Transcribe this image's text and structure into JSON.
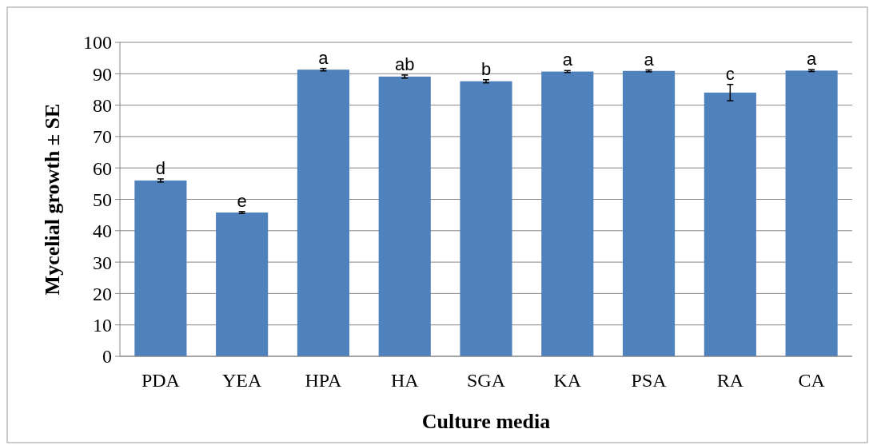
{
  "chart_data": {
    "type": "bar",
    "xlabel": "Culture media",
    "ylabel": "Mycelial growth ± SE",
    "categories": [
      "PDA",
      "YEA",
      "HPA",
      "HA",
      "SGA",
      "KA",
      "PSA",
      "RA",
      "CA"
    ],
    "values": [
      56.0,
      45.8,
      91.3,
      89.1,
      87.6,
      90.7,
      90.9,
      84.0,
      91.0
    ],
    "errors": [
      0.5,
      0.3,
      0.4,
      0.5,
      0.5,
      0.3,
      0.3,
      2.6,
      0.3
    ],
    "color": "#4f81bd",
    "ylim": [
      0,
      100
    ],
    "yticks": [
      0,
      10,
      20,
      30,
      40,
      50,
      60,
      70,
      80,
      90,
      100
    ],
    "grid": "y",
    "annotations": [
      {
        "text": "d",
        "x": "PDA",
        "y": 56.5
      },
      {
        "text": "e",
        "x": "YEA",
        "y": 46.1
      },
      {
        "text": "a",
        "x": "HPA",
        "y": 91.7
      },
      {
        "text": "ab",
        "x": "HA",
        "y": 89.6
      },
      {
        "text": "b",
        "x": "SGA",
        "y": 88.1
      },
      {
        "text": "a",
        "x": "KA",
        "y": 91.0
      },
      {
        "text": "a",
        "x": "PSA",
        "y": 91.2
      },
      {
        "text": "c",
        "x": "RA",
        "y": 86.6
      },
      {
        "text": "a",
        "x": "CA",
        "y": 91.3
      }
    ]
  }
}
